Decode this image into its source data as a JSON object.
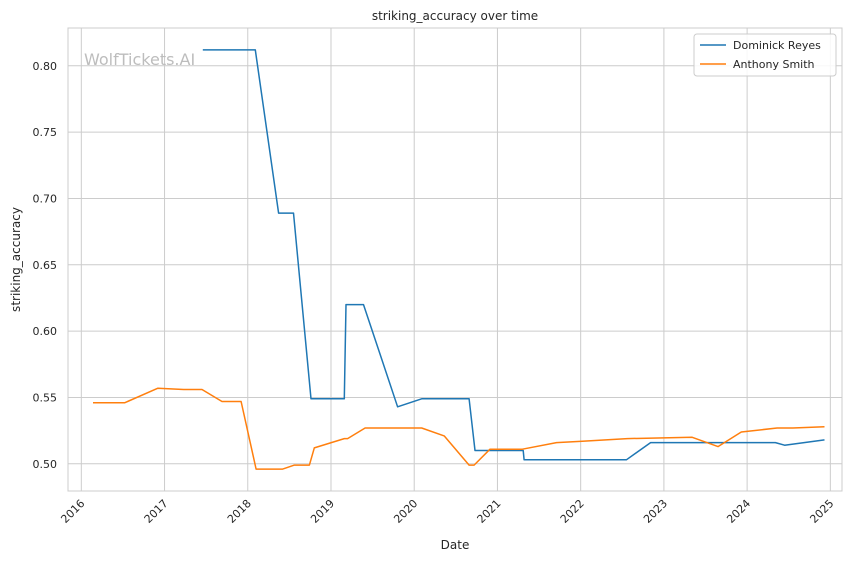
{
  "chart_data": {
    "type": "line",
    "title": "striking_accuracy over time",
    "xlabel": "Date",
    "ylabel": "striking_accuracy",
    "watermark": "WolfTickets.AI",
    "xlim": [
      2015.84,
      2025.14
    ],
    "ylim": [
      0.4795,
      0.8285
    ],
    "x_ticks": [
      2016,
      2017,
      2018,
      2019,
      2020,
      2021,
      2022,
      2023,
      2024,
      2025
    ],
    "x_tick_labels": [
      "2016",
      "2017",
      "2018",
      "2019",
      "2020",
      "2021",
      "2022",
      "2023",
      "2024",
      "2025"
    ],
    "y_ticks": [
      0.5,
      0.55,
      0.6,
      0.65,
      0.7,
      0.75,
      0.8
    ],
    "y_tick_labels": [
      "0.50",
      "0.55",
      "0.60",
      "0.65",
      "0.70",
      "0.75",
      "0.80"
    ],
    "grid": true,
    "legend_position": "top-right",
    "series": [
      {
        "name": "Dominick Reyes",
        "color": "#1f77b4",
        "points": [
          [
            2017.46,
            0.812
          ],
          [
            2018.09,
            0.812
          ],
          [
            2018.37,
            0.689
          ],
          [
            2018.55,
            0.689
          ],
          [
            2018.76,
            0.549
          ],
          [
            2019.16,
            0.549
          ],
          [
            2019.18,
            0.62
          ],
          [
            2019.39,
            0.62
          ],
          [
            2019.8,
            0.543
          ],
          [
            2020.09,
            0.549
          ],
          [
            2020.66,
            0.549
          ],
          [
            2020.73,
            0.51
          ],
          [
            2021.31,
            0.51
          ],
          [
            2021.32,
            0.503
          ],
          [
            2022.55,
            0.503
          ],
          [
            2022.84,
            0.516
          ],
          [
            2024.34,
            0.516
          ],
          [
            2024.45,
            0.514
          ],
          [
            2024.93,
            0.518
          ]
        ]
      },
      {
        "name": "Anthony Smith",
        "color": "#ff7f0e",
        "points": [
          [
            2016.14,
            0.546
          ],
          [
            2016.52,
            0.546
          ],
          [
            2016.92,
            0.557
          ],
          [
            2017.23,
            0.556
          ],
          [
            2017.45,
            0.556
          ],
          [
            2017.69,
            0.547
          ],
          [
            2017.92,
            0.547
          ],
          [
            2018.1,
            0.496
          ],
          [
            2018.42,
            0.496
          ],
          [
            2018.56,
            0.499
          ],
          [
            2018.74,
            0.499
          ],
          [
            2018.8,
            0.512
          ],
          [
            2019.16,
            0.519
          ],
          [
            2019.2,
            0.519
          ],
          [
            2019.41,
            0.527
          ],
          [
            2020.09,
            0.527
          ],
          [
            2020.36,
            0.521
          ],
          [
            2020.66,
            0.499
          ],
          [
            2020.72,
            0.499
          ],
          [
            2020.91,
            0.511
          ],
          [
            2021.3,
            0.511
          ],
          [
            2021.71,
            0.516
          ],
          [
            2022.02,
            0.517
          ],
          [
            2022.56,
            0.519
          ],
          [
            2023.34,
            0.52
          ],
          [
            2023.65,
            0.513
          ],
          [
            2023.93,
            0.524
          ],
          [
            2024.36,
            0.527
          ],
          [
            2024.55,
            0.527
          ],
          [
            2024.93,
            0.528
          ]
        ]
      }
    ]
  }
}
